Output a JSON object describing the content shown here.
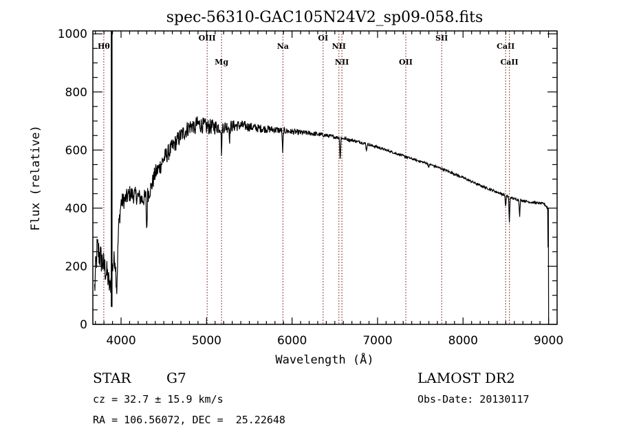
{
  "chart_data": {
    "type": "line",
    "title": "spec-56310-GAC105N24V2_sp09-058.fits",
    "xlabel": "Wavelength (Å)",
    "ylabel": "Flux (relative)",
    "xlim": [
      3670,
      9100
    ],
    "ylim": [
      0,
      1010
    ],
    "x_ticks": [
      4000,
      5000,
      6000,
      7000,
      8000,
      9000
    ],
    "x_tick_labels": [
      "4000",
      "5000",
      "6000",
      "7000",
      "8000",
      "9000"
    ],
    "y_ticks": [
      0,
      200,
      400,
      600,
      800,
      1000
    ],
    "y_tick_labels": [
      "0",
      "200",
      "400",
      "600",
      "800",
      "1000"
    ],
    "grid": false,
    "series": [
      {
        "name": "spectrum",
        "continuum": [
          [
            3690,
            120
          ],
          [
            3720,
            260
          ],
          [
            3760,
            230
          ],
          [
            3800,
            200
          ],
          [
            3840,
            170
          ],
          [
            3870,
            120
          ],
          [
            3900,
            200
          ],
          [
            3930,
            230
          ],
          [
            3950,
            120
          ],
          [
            3970,
            330
          ],
          [
            4000,
            420
          ],
          [
            4050,
            430
          ],
          [
            4100,
            450
          ],
          [
            4200,
            440
          ],
          [
            4250,
            430
          ],
          [
            4300,
            440
          ],
          [
            4350,
            470
          ],
          [
            4400,
            520
          ],
          [
            4450,
            540
          ],
          [
            4500,
            570
          ],
          [
            4600,
            610
          ],
          [
            4700,
            650
          ],
          [
            4800,
            680
          ],
          [
            4900,
            690
          ],
          [
            5000,
            680
          ],
          [
            5200,
            680
          ],
          [
            5400,
            685
          ],
          [
            5600,
            675
          ],
          [
            5800,
            670
          ],
          [
            6000,
            663
          ],
          [
            6200,
            658
          ],
          [
            6400,
            650
          ],
          [
            6600,
            640
          ],
          [
            6800,
            627
          ],
          [
            7000,
            610
          ],
          [
            7200,
            590
          ],
          [
            7400,
            570
          ],
          [
            7600,
            552
          ],
          [
            7800,
            530
          ],
          [
            8000,
            505
          ],
          [
            8200,
            478
          ],
          [
            8400,
            455
          ],
          [
            8600,
            432
          ],
          [
            8800,
            420
          ],
          [
            8950,
            415
          ],
          [
            8990,
            400
          ],
          [
            9000,
            60
          ]
        ],
        "noise_amplitude": [
          [
            3690,
            60
          ],
          [
            4000,
            30
          ],
          [
            4500,
            30
          ],
          [
            5000,
            28
          ],
          [
            5500,
            16
          ],
          [
            6000,
            10
          ],
          [
            6500,
            6
          ],
          [
            7000,
            4
          ],
          [
            8000,
            4
          ],
          [
            9000,
            4
          ]
        ],
        "absorption": [
          [
            3890,
            900
          ],
          [
            4300,
            130
          ],
          [
            4860,
            40
          ],
          [
            5175,
            90
          ],
          [
            5270,
            40
          ],
          [
            5890,
            80
          ],
          [
            6563,
            80
          ],
          [
            6870,
            25
          ],
          [
            7600,
            15
          ],
          [
            8498,
            40
          ],
          [
            8542,
            90
          ],
          [
            8662,
            60
          ]
        ],
        "emission_spike": [
          3890,
          1015
        ]
      }
    ],
    "line_markers": [
      {
        "label": "Hθ",
        "wavelength": 3798,
        "row": 1
      },
      {
        "label": "OIII",
        "wavelength": 5007,
        "row": 0
      },
      {
        "label": "Mg",
        "wavelength": 5175,
        "row": 2
      },
      {
        "label": "Na",
        "wavelength": 5893,
        "row": 1
      },
      {
        "label": "OI",
        "wavelength": 6363,
        "row": 0
      },
      {
        "label": "NII",
        "wavelength": 6548,
        "row": 1
      },
      {
        "label": "NII",
        "wavelength": 6583,
        "row": 2
      },
      {
        "label": "OII",
        "wavelength": 7330,
        "row": 2
      },
      {
        "label": "SII",
        "wavelength": 7750,
        "row": 0
      },
      {
        "label": "CaII",
        "wavelength": 8498,
        "row": 1
      },
      {
        "label": "CaII",
        "wavelength": 8542,
        "row": 2
      }
    ],
    "colors": {
      "spectrum": "#000000",
      "marker_line": "#8b3a3a",
      "frame": "#000000"
    }
  },
  "info": {
    "object_class": "STAR",
    "subclass": "G7",
    "redshift": "cz = 32.7 ± 15.9 km/s",
    "coords": "RA = 106.56072, DEC =  25.22648",
    "survey": "LAMOST DR2",
    "obs_date": "Obs-Date: 20130117"
  }
}
